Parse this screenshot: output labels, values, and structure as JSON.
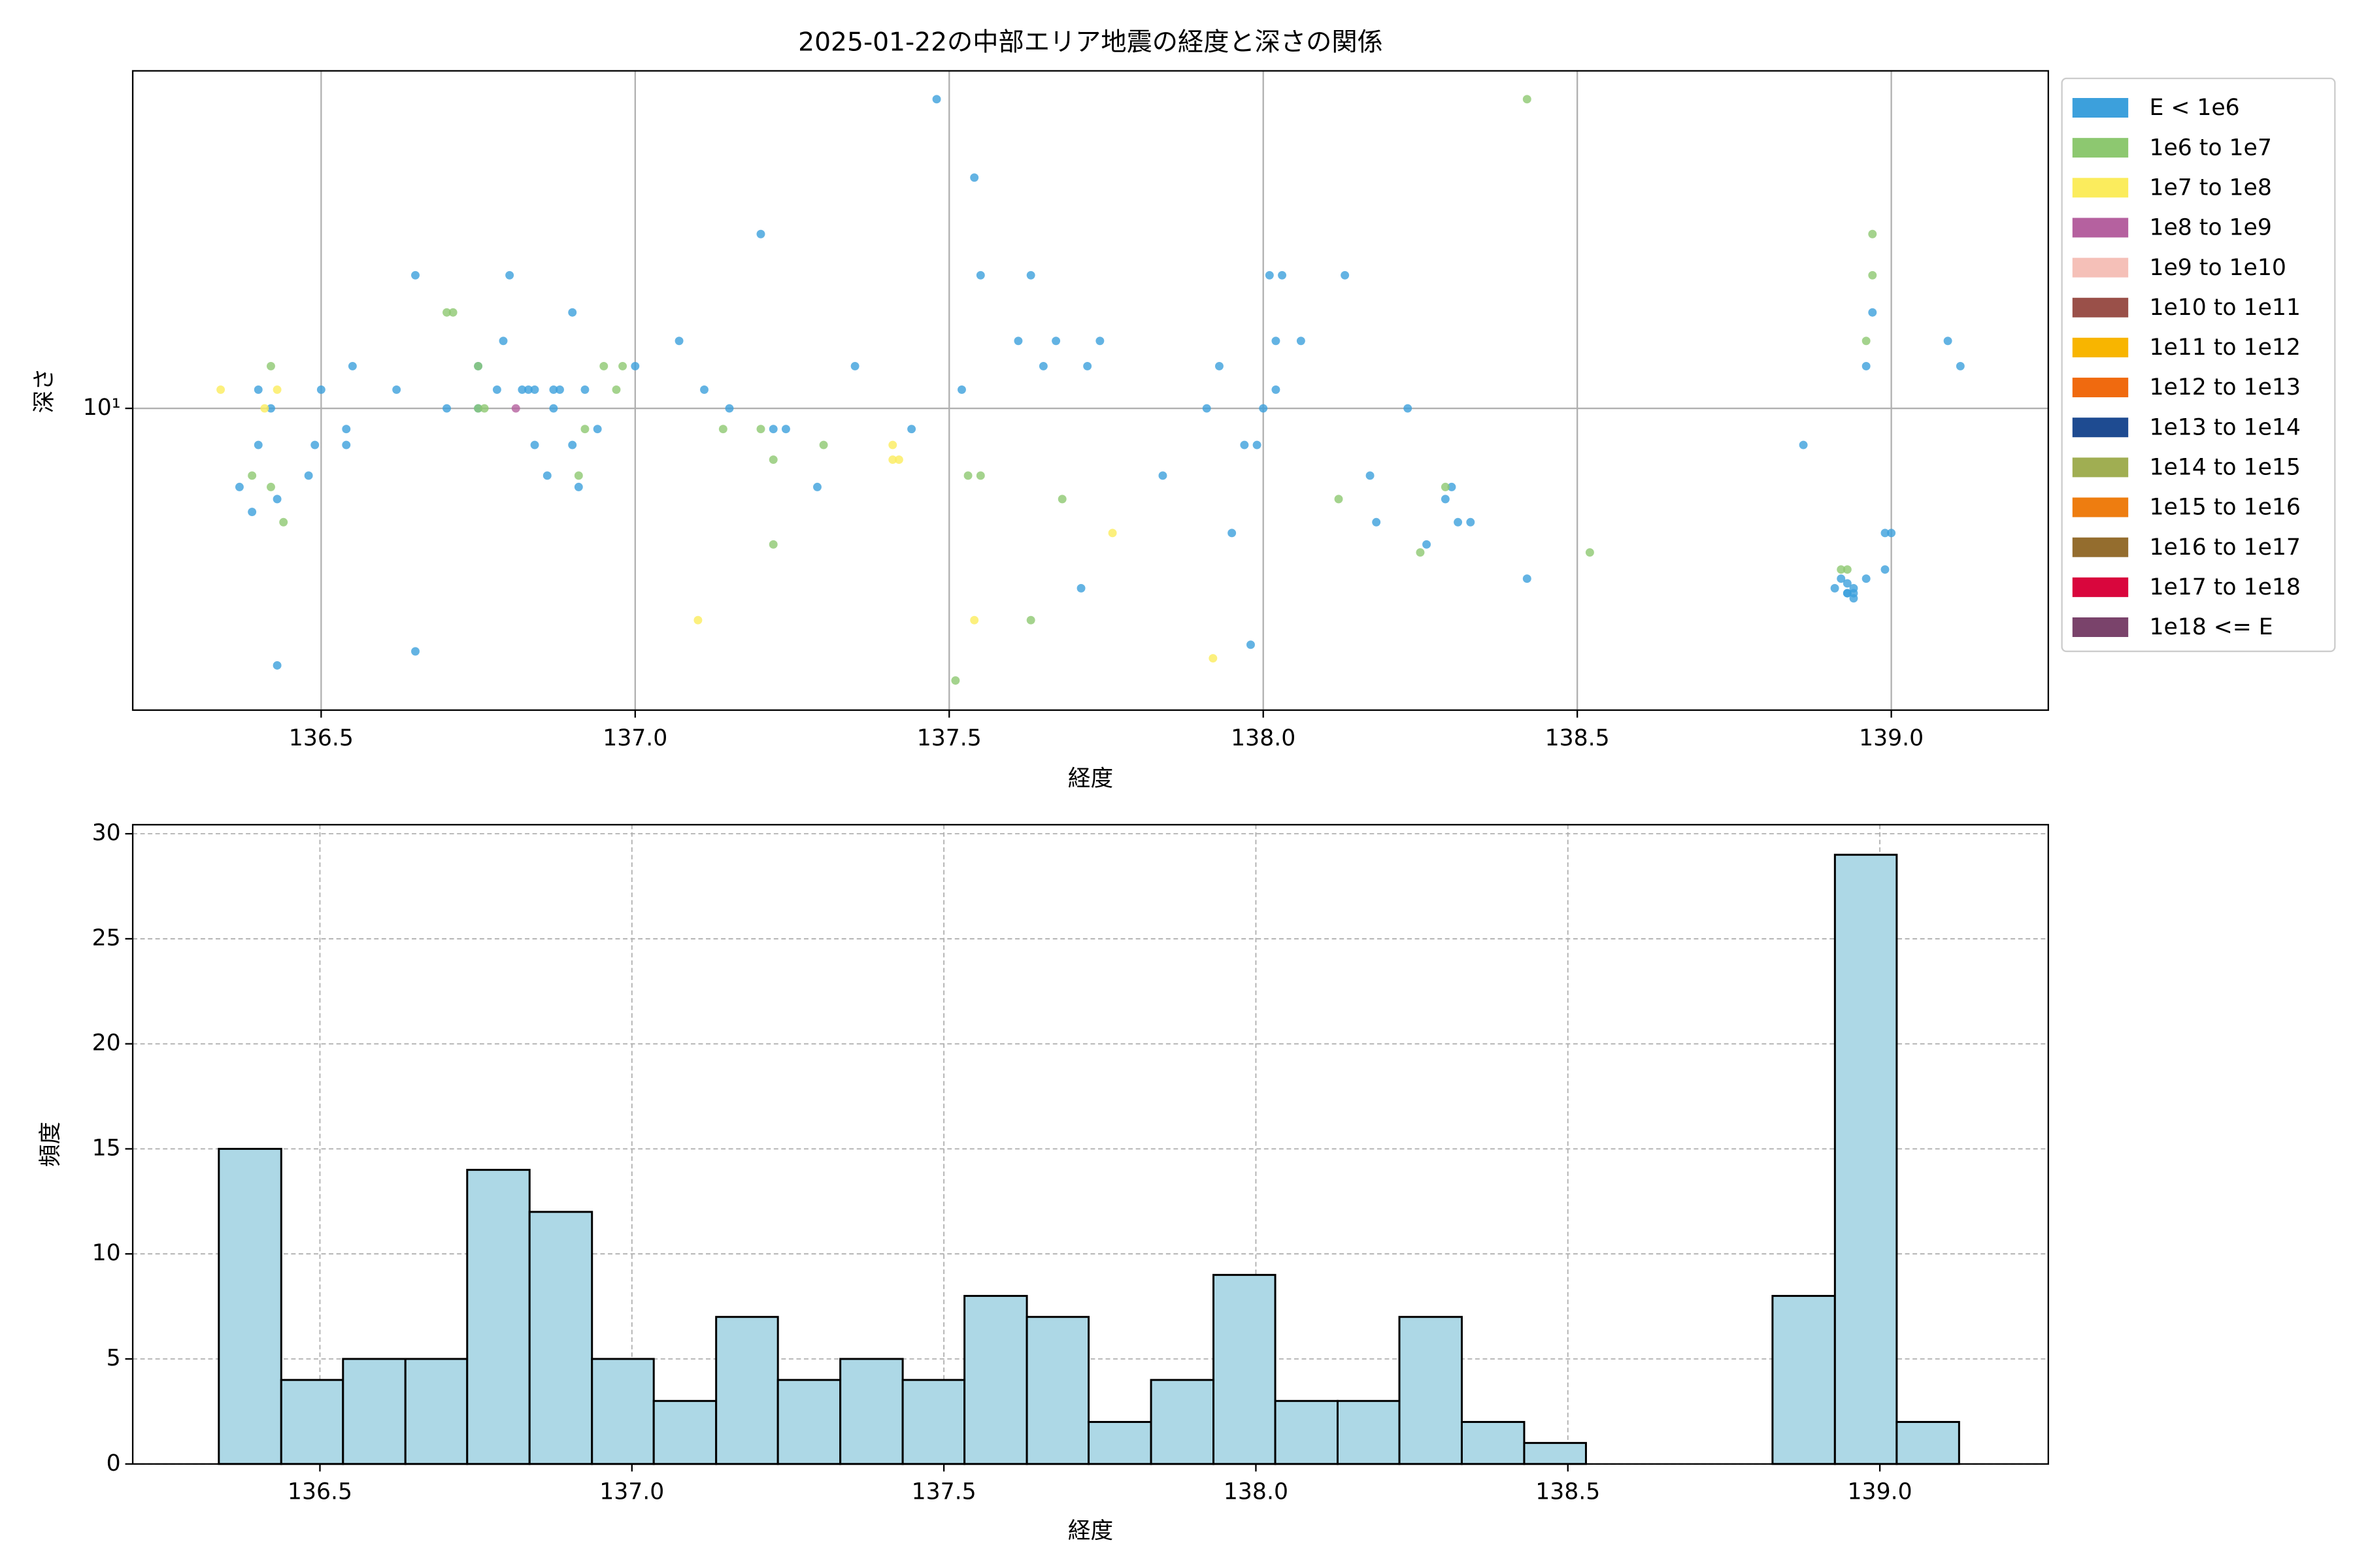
{
  "chart_data": [
    {
      "type": "scatter",
      "title": "2025-01-22の中部エリア地震の経度と深さの関係",
      "xlabel": "経度",
      "ylabel": "深さ",
      "xlim": [
        136.2,
        139.25
      ],
      "ylim": [
        2.15,
        55.8
      ],
      "yscale": "log",
      "xticks": [
        136.5,
        {
          "value": 137,
          "label": "137.0"
        },
        137.5,
        {
          "value": 138,
          "label": "138.0"
        },
        138.5,
        {
          "value": 139,
          "label": "139.0"
        }
      ],
      "yticks": [
        {
          "value": 10,
          "label": "10¹"
        }
      ],
      "grid": true,
      "legend": "outside-right",
      "series": [
        {
          "name": "E < 1e6",
          "color": "#3ca0dc",
          "x": [
            137.48,
            137.54,
            137.2,
            136.65,
            136.8,
            137.55,
            137.63,
            138.01,
            138.03,
            138.13,
            138.97,
            136.9,
            136.79,
            137.07,
            137.61,
            137.67,
            137.74,
            138.02,
            138.06,
            139.09,
            136.75,
            136.55,
            137.35,
            137.65,
            137.72,
            137.93,
            137.0,
            138.96,
            139.11,
            136.5,
            136.62,
            136.4,
            136.78,
            136.82,
            136.83,
            136.84,
            136.87,
            136.88,
            136.92,
            137.11,
            137.52,
            138.02,
            136.7,
            136.75,
            136.42,
            137.15,
            136.87,
            137.91,
            138.0,
            138.23,
            136.54,
            136.94,
            137.22,
            137.24,
            137.44,
            136.4,
            136.49,
            136.54,
            136.84,
            136.9,
            137.97,
            137.99,
            138.86,
            136.48,
            136.86,
            138.17,
            137.84,
            136.37,
            136.91,
            137.29,
            138.3,
            136.43,
            138.29,
            136.39,
            138.18,
            138.31,
            138.33,
            137.95,
            138.99,
            139.0,
            138.26,
            138.99,
            138.96,
            138.42,
            137.71,
            138.91,
            138.92,
            138.94,
            138.94,
            137.98,
            136.65,
            136.43,
            138.93,
            138.94,
            138.93,
            138.93
          ],
          "values": [
            48.3,
            32.4,
            24.3,
            19.7,
            19.7,
            19.7,
            19.7,
            19.7,
            19.7,
            19.7,
            16.3,
            16.3,
            14.1,
            14.1,
            14.1,
            14.1,
            14.1,
            14.1,
            14.1,
            14.1,
            12.4,
            12.4,
            12.4,
            12.4,
            12.4,
            12.4,
            12.4,
            12.4,
            12.4,
            11.0,
            11.0,
            11.0,
            11.0,
            11.0,
            11.0,
            11.0,
            11.0,
            11.0,
            11.0,
            11.0,
            11.0,
            11.0,
            10,
            10,
            10,
            10,
            10,
            10,
            10,
            10,
            9.0,
            9.0,
            9.0,
            9.0,
            9.0,
            8.3,
            8.3,
            8.3,
            8.3,
            8.3,
            8.3,
            8.3,
            8.3,
            7.1,
            7.1,
            7.1,
            7.1,
            6.7,
            6.7,
            6.7,
            6.7,
            6.3,
            6.3,
            5.9,
            5.6,
            5.6,
            5.6,
            5.3,
            5.3,
            5.3,
            5.0,
            4.4,
            4.2,
            4.2,
            4.0,
            4.0,
            4.2,
            4.0,
            3.8,
            3.0,
            2.9,
            2.7,
            3.9,
            3.9,
            3.9,
            4.1
          ]
        },
        {
          "name": "1e6 to 1e7",
          "color": "#8dc870",
          "x": [
            138.42,
            138.97,
            138.97,
            136.7,
            136.71,
            138.96,
            136.42,
            136.75,
            136.95,
            136.98,
            136.97,
            136.75,
            136.76,
            136.92,
            137.14,
            137.2,
            137.3,
            137.22,
            136.39,
            136.91,
            137.53,
            137.55,
            136.42,
            138.29,
            138.12,
            137.68,
            136.44,
            137.22,
            138.25,
            138.52,
            137.63,
            137.51,
            138.92,
            138.93
          ],
          "values": [
            48.3,
            24.3,
            19.7,
            16.3,
            16.3,
            14.1,
            12.4,
            12.4,
            12.4,
            12.4,
            11.0,
            10,
            10,
            9.0,
            9.0,
            9.0,
            8.3,
            7.7,
            7.1,
            7.1,
            7.1,
            7.1,
            6.7,
            6.7,
            6.3,
            6.3,
            5.6,
            5.0,
            4.8,
            4.8,
            3.4,
            2.5,
            4.4,
            4.4
          ]
        },
        {
          "name": "1e7 to 1e8",
          "color": "#fbec5d",
          "x": [
            136.34,
            136.41,
            136.43,
            137.41,
            137.41,
            137.42,
            137.76,
            137.1,
            137.54,
            137.92
          ],
          "values": [
            11.0,
            10,
            11.0,
            8.3,
            7.7,
            7.7,
            5.3,
            3.4,
            3.4,
            2.8
          ]
        },
        {
          "name": "1e8 to 1e9",
          "color": "#b5619f",
          "x": [
            136.81
          ],
          "values": [
            10
          ]
        },
        {
          "name": "1e9 to 1e10",
          "color": "#f5c0b8",
          "x": [],
          "values": []
        },
        {
          "name": "1e10 to 1e11",
          "color": "#9a5049",
          "x": [],
          "values": []
        },
        {
          "name": "1e11 to 1e12",
          "color": "#f8b500",
          "x": [],
          "values": []
        },
        {
          "name": "1e12 to 1e13",
          "color": "#f06a0f",
          "x": [],
          "values": []
        },
        {
          "name": "1e13 to 1e14",
          "color": "#1e4b91",
          "x": [],
          "values": []
        },
        {
          "name": "1e14 to 1e15",
          "color": "#a0ae52",
          "x": [],
          "values": []
        },
        {
          "name": "1e15 to 1e16",
          "color": "#ee7d10",
          "x": [],
          "values": []
        },
        {
          "name": "1e16 to 1e17",
          "color": "#946d2e",
          "x": [],
          "values": []
        },
        {
          "name": "1e17 to 1e18",
          "color": "#d9063d",
          "x": [],
          "values": []
        },
        {
          "name": "1e18 <= E",
          "color": "#7a436b",
          "x": [],
          "values": []
        }
      ]
    },
    {
      "type": "histogram",
      "xlabel": "経度",
      "ylabel": "頻度",
      "xlim": [
        136.2,
        139.27
      ],
      "ylim": [
        0,
        30.43
      ],
      "xticks": [
        136.5,
        {
          "value": 137,
          "label": "137.0"
        },
        137.5,
        {
          "value": 138,
          "label": "138.0"
        },
        138.5,
        {
          "value": 139,
          "label": "139.0"
        }
      ],
      "yticks": [
        0,
        5,
        10,
        15,
        20,
        25,
        30
      ],
      "grid": true,
      "color": "#add8e6",
      "edgecolor": "#000000",
      "bins": [
        136.338,
        136.438,
        136.537,
        136.637,
        136.736,
        136.836,
        136.936,
        137.035,
        137.135,
        137.234,
        137.334,
        137.434,
        137.533,
        137.633,
        137.732,
        137.832,
        137.932,
        138.031,
        138.131,
        138.23,
        138.33,
        138.43,
        138.529,
        138.629,
        138.728,
        138.828,
        138.928,
        139.027,
        139.127
      ],
      "values": [
        15,
        4,
        5,
        5,
        14,
        12,
        5,
        3,
        7,
        4,
        5,
        4,
        8,
        7,
        2,
        4,
        9,
        3,
        3,
        7,
        2,
        1,
        0,
        0,
        0,
        8,
        29,
        2
      ]
    }
  ]
}
